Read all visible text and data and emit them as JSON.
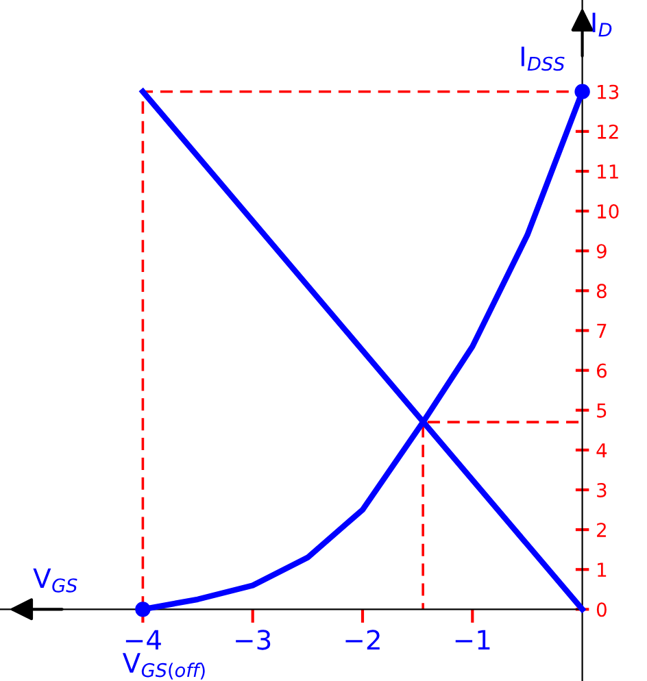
{
  "chart_data": {
    "type": "line",
    "xlabel": "V$_{GS}$",
    "ylabel": "I$_{D}$",
    "annotations": [
      {
        "text": "I$_{DSS}$",
        "x": 0,
        "y": 13
      },
      {
        "text": "V$_{GS(off)}$",
        "x": -4,
        "y": 0
      }
    ],
    "series": [
      {
        "color": "#0000ff",
        "x": [
          -4,
          -3.5,
          -3,
          -2.5,
          -2,
          -1.45,
          -1,
          -0.5,
          0
        ],
        "values": [
          0,
          0.25,
          0.6,
          1.3,
          2.5,
          4.7,
          6.6,
          9.4,
          13
        ]
      },
      {
        "color": "#0000ff",
        "x": [
          -4,
          0
        ],
        "values": [
          13,
          0
        ]
      },
      {
        "color": "#ff0000",
        "line_style": "dashed",
        "x": [
          -4,
          -4,
          0
        ],
        "values": [
          0,
          13,
          13
        ]
      },
      {
        "color": "#ff0000",
        "line_style": "dashed",
        "x": [
          0,
          -1.45,
          -1.45
        ],
        "values": [
          4.7,
          4.7,
          0
        ]
      },
      {
        "type": "scatter",
        "color": "#0000ff",
        "marker": "circle",
        "x": [
          -4,
          0
        ],
        "values": [
          0,
          13
        ]
      }
    ],
    "xlim": [
      -5.3,
      0
    ],
    "ylim": [
      -1.8,
      15.3
    ],
    "xticks": [
      {
        "value": -4,
        "label": "−4"
      },
      {
        "value": -3,
        "label": "−3"
      },
      {
        "value": -2,
        "label": "−2"
      },
      {
        "value": -1,
        "label": "−1"
      }
    ],
    "yticks": [
      0,
      1,
      2,
      3,
      4,
      5,
      6,
      7,
      8,
      9,
      10,
      11,
      12,
      13
    ],
    "grid": false,
    "legend": false
  }
}
